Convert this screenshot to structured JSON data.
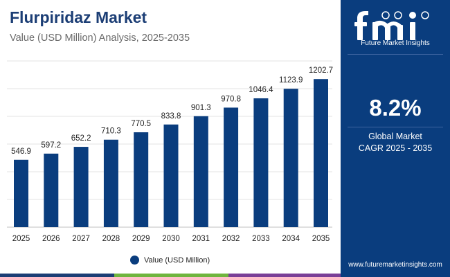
{
  "header": {
    "title": "Flurpiridaz Market",
    "subtitle": "Value (USD Million) Analysis, 2025-2035"
  },
  "chart_data": {
    "type": "bar",
    "title": "Flurpiridaz Market",
    "subtitle": "Value (USD Million) Analysis, 2025-2035",
    "xlabel": "",
    "ylabel": "",
    "categories": [
      "2025",
      "2026",
      "2027",
      "2028",
      "2029",
      "2030",
      "2031",
      "2032",
      "2033",
      "2034",
      "2035"
    ],
    "series": [
      {
        "name": "Value (USD Million)",
        "values": [
          546.9,
          597.2,
          652.2,
          710.3,
          770.5,
          833.8,
          901.3,
          970.8,
          1046.4,
          1123.9,
          1202.7
        ],
        "labels": [
          "546.9",
          "597.2",
          "652.2",
          "710.3",
          "770.5",
          "833.8",
          "901.3",
          "970.8",
          "1046.4",
          "1123.9",
          "1202.7"
        ]
      }
    ],
    "ylim": [
      0,
      1350
    ],
    "grid": true,
    "legend": "bottom-center"
  },
  "legend": {
    "label": "Value (USD Million)"
  },
  "sidebar": {
    "logo_text": "Future Market Insights",
    "cagr_value": "8.2%",
    "cagr_label_1": "Global Market",
    "cagr_label_2": "CAGR 2025 - 2035",
    "website": "www.futuremarketinsights.com"
  },
  "colors": {
    "bar": "#0a3d7e",
    "title": "#1c3e75",
    "sidebar_bg": "#0a3d7e",
    "strip_1": "#1c3e75",
    "strip_2": "#6fb53e",
    "strip_3": "#7a3f97"
  }
}
